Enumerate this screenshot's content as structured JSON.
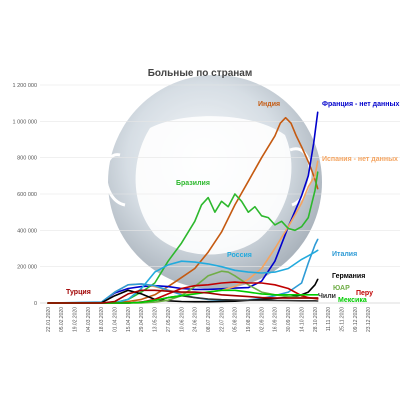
{
  "chart_data": {
    "type": "line",
    "title": "Больные по странам",
    "xlabel": "",
    "ylabel": "",
    "ylim": [
      0,
      1200000
    ],
    "yticks": [
      0,
      200000,
      400000,
      600000,
      800000,
      1000000,
      1200000
    ],
    "ytick_labels": [
      "0",
      "200 000",
      "400 000",
      "600 000",
      "800 000",
      "1 000 000",
      "1 200 000"
    ],
    "xtick_labels": [
      "22.01.2020",
      "05.02.2020",
      "19.02.2020",
      "04.03.2020",
      "18.03.2020",
      "01.04.2020",
      "15.04.2020",
      "29.04.2020",
      "13.05.2020",
      "27.05.2020",
      "10.06.2020",
      "24.06.2020",
      "08.07.2020",
      "22.07.2020",
      "05.08.2020",
      "19.08.2020",
      "02.09.2020",
      "16.09.2020",
      "30.09.2020",
      "14.10.2020",
      "28.10.2020",
      "11.11.2020",
      "25.11.2020",
      "09.12.2020",
      "23.12.2020"
    ],
    "grid": true,
    "series": [
      {
        "name": "Индия",
        "color": "#c55a11",
        "points": [
          [
            0,
            0
          ],
          [
            4,
            0
          ],
          [
            5,
            2000
          ],
          [
            6,
            8000
          ],
          [
            7,
            20000
          ],
          [
            8,
            45000
          ],
          [
            9,
            90000
          ],
          [
            10,
            140000
          ],
          [
            11,
            190000
          ],
          [
            12,
            280000
          ],
          [
            13,
            390000
          ],
          [
            14,
            540000
          ],
          [
            15,
            670000
          ],
          [
            16,
            800000
          ],
          [
            17,
            920000
          ],
          [
            17.4,
            990000
          ],
          [
            17.8,
            1020000
          ],
          [
            18.2,
            990000
          ],
          [
            18.6,
            920000
          ],
          [
            19,
            860000
          ],
          [
            19.6,
            760000
          ],
          [
            20,
            680000
          ],
          [
            20.2,
            630000
          ]
        ]
      },
      {
        "name": "Франция - нет данных",
        "color": "#0000cc",
        "points": [
          [
            0,
            0
          ],
          [
            4,
            2000
          ],
          [
            5,
            55000
          ],
          [
            6,
            80000
          ],
          [
            7,
            90000
          ],
          [
            8,
            95000
          ],
          [
            9,
            90000
          ],
          [
            10,
            80000
          ],
          [
            11,
            75000
          ],
          [
            12,
            75000
          ],
          [
            13,
            78000
          ],
          [
            14,
            82000
          ],
          [
            15,
            85000
          ],
          [
            16,
            120000
          ],
          [
            17,
            230000
          ],
          [
            18,
            420000
          ],
          [
            19,
            590000
          ],
          [
            19.5,
            700000
          ],
          [
            19.9,
            880000
          ],
          [
            20.2,
            1050000
          ]
        ]
      },
      {
        "name": "Испания - нет данных",
        "color": "#f4a460",
        "points": [
          [
            0,
            0
          ],
          [
            4,
            1000
          ],
          [
            5,
            60000
          ],
          [
            6,
            100000
          ],
          [
            7,
            105000
          ],
          [
            8,
            90000
          ],
          [
            9,
            70000
          ],
          [
            10,
            55000
          ],
          [
            11,
            55000
          ],
          [
            12,
            60000
          ],
          [
            13,
            70000
          ],
          [
            14,
            90000
          ],
          [
            15,
            130000
          ],
          [
            16,
            190000
          ],
          [
            17,
            300000
          ],
          [
            18,
            420000
          ],
          [
            19,
            550000
          ],
          [
            19.5,
            640000
          ],
          [
            20,
            700000
          ],
          [
            20.2,
            780000
          ]
        ]
      },
      {
        "name": "Бразилия",
        "color": "#2db82d",
        "points": [
          [
            0,
            0
          ],
          [
            4,
            0
          ],
          [
            5,
            2000
          ],
          [
            6,
            20000
          ],
          [
            7,
            60000
          ],
          [
            8,
            110000
          ],
          [
            9,
            230000
          ],
          [
            10,
            330000
          ],
          [
            11,
            450000
          ],
          [
            11.5,
            540000
          ],
          [
            12,
            580000
          ],
          [
            12.5,
            500000
          ],
          [
            13,
            560000
          ],
          [
            13.5,
            530000
          ],
          [
            14,
            600000
          ],
          [
            14.5,
            560000
          ],
          [
            15,
            500000
          ],
          [
            15.5,
            530000
          ],
          [
            16,
            480000
          ],
          [
            16.5,
            470000
          ],
          [
            17,
            430000
          ],
          [
            17.5,
            450000
          ],
          [
            18,
            410000
          ],
          [
            18.5,
            400000
          ],
          [
            19,
            420000
          ],
          [
            19.5,
            470000
          ],
          [
            20,
            620000
          ],
          [
            20.2,
            720000
          ]
        ]
      },
      {
        "name": "Италия",
        "color": "#2e9bd6",
        "points": [
          [
            0,
            0
          ],
          [
            4,
            5000
          ],
          [
            5,
            60000
          ],
          [
            6,
            100000
          ],
          [
            7,
            105000
          ],
          [
            8,
            95000
          ],
          [
            9,
            70000
          ],
          [
            10,
            45000
          ],
          [
            11,
            30000
          ],
          [
            12,
            20000
          ],
          [
            13,
            15000
          ],
          [
            14,
            14000
          ],
          [
            15,
            17000
          ],
          [
            16,
            25000
          ],
          [
            17,
            40000
          ],
          [
            18,
            60000
          ],
          [
            19,
            110000
          ],
          [
            19.5,
            220000
          ],
          [
            20,
            320000
          ],
          [
            20.2,
            350000
          ]
        ]
      },
      {
        "name": "Россия",
        "color": "#22aadd",
        "points": [
          [
            0,
            0
          ],
          [
            5,
            0
          ],
          [
            6,
            20000
          ],
          [
            7,
            80000
          ],
          [
            8,
            170000
          ],
          [
            9,
            210000
          ],
          [
            10,
            230000
          ],
          [
            11,
            225000
          ],
          [
            12,
            215000
          ],
          [
            13,
            200000
          ],
          [
            14,
            180000
          ],
          [
            15,
            170000
          ],
          [
            16,
            165000
          ],
          [
            17,
            170000
          ],
          [
            18,
            190000
          ],
          [
            19,
            240000
          ],
          [
            19.5,
            260000
          ],
          [
            20,
            280000
          ],
          [
            20.2,
            290000
          ]
        ]
      },
      {
        "name": "Германия",
        "color": "#000000",
        "points": [
          [
            0,
            0
          ],
          [
            4,
            1000
          ],
          [
            5,
            40000
          ],
          [
            6,
            70000
          ],
          [
            7,
            50000
          ],
          [
            8,
            20000
          ],
          [
            9,
            12000
          ],
          [
            10,
            8000
          ],
          [
            11,
            7000
          ],
          [
            12,
            7000
          ],
          [
            13,
            8000
          ],
          [
            14,
            10000
          ],
          [
            15,
            15000
          ],
          [
            16,
            20000
          ],
          [
            17,
            25000
          ],
          [
            18,
            32000
          ],
          [
            19,
            45000
          ],
          [
            19.5,
            60000
          ],
          [
            20,
            100000
          ],
          [
            20.2,
            130000
          ]
        ]
      },
      {
        "name": "ЮАР",
        "color": "#70ad47",
        "points": [
          [
            0,
            0
          ],
          [
            7,
            0
          ],
          [
            8,
            5000
          ],
          [
            9,
            15000
          ],
          [
            10,
            40000
          ],
          [
            11,
            90000
          ],
          [
            12,
            150000
          ],
          [
            13,
            175000
          ],
          [
            13.5,
            170000
          ],
          [
            14,
            150000
          ],
          [
            15,
            100000
          ],
          [
            16,
            60000
          ],
          [
            17,
            45000
          ],
          [
            18,
            35000
          ],
          [
            19,
            30000
          ],
          [
            20,
            25000
          ],
          [
            20.2,
            25000
          ]
        ]
      },
      {
        "name": "Чили",
        "color": "#333333",
        "points": [
          [
            0,
            0
          ],
          [
            6,
            0
          ],
          [
            7,
            5000
          ],
          [
            8,
            15000
          ],
          [
            9,
            30000
          ],
          [
            10,
            40000
          ],
          [
            11,
            30000
          ],
          [
            12,
            22000
          ],
          [
            13,
            18000
          ],
          [
            14,
            16000
          ],
          [
            15,
            15000
          ],
          [
            16,
            15000
          ],
          [
            17,
            14000
          ],
          [
            18,
            13000
          ],
          [
            19,
            12000
          ],
          [
            20,
            12000
          ],
          [
            20.2,
            11000
          ]
        ]
      },
      {
        "name": "Перу",
        "color": "#c00000",
        "points": [
          [
            0,
            0
          ],
          [
            6,
            0
          ],
          [
            7,
            5000
          ],
          [
            8,
            20000
          ],
          [
            9,
            50000
          ],
          [
            10,
            80000
          ],
          [
            11,
            95000
          ],
          [
            12,
            100000
          ],
          [
            13,
            110000
          ],
          [
            14,
            115000
          ],
          [
            15,
            110000
          ],
          [
            16,
            110000
          ],
          [
            17,
            100000
          ],
          [
            18,
            80000
          ],
          [
            19,
            40000
          ],
          [
            19.5,
            30000
          ],
          [
            20,
            25000
          ],
          [
            20.2,
            22000
          ]
        ]
      },
      {
        "name": "Мексика",
        "color": "#00cc00",
        "points": [
          [
            0,
            0
          ],
          [
            6,
            0
          ],
          [
            7,
            4000
          ],
          [
            8,
            15000
          ],
          [
            9,
            30000
          ],
          [
            10,
            40000
          ],
          [
            11,
            50000
          ],
          [
            12,
            60000
          ],
          [
            13,
            70000
          ],
          [
            14,
            70000
          ],
          [
            15,
            60000
          ],
          [
            16,
            50000
          ],
          [
            17,
            45000
          ],
          [
            18,
            45000
          ],
          [
            19,
            45000
          ],
          [
            20,
            45000
          ],
          [
            20.2,
            45000
          ]
        ]
      },
      {
        "name": "Турция",
        "color": "#a00000",
        "points": [
          [
            0,
            0
          ],
          [
            4,
            0
          ],
          [
            5,
            8000
          ],
          [
            6,
            50000
          ],
          [
            7,
            70000
          ],
          [
            8,
            70000
          ],
          [
            9,
            65000
          ],
          [
            10,
            60000
          ],
          [
            11,
            60000
          ],
          [
            12,
            55000
          ],
          [
            13,
            45000
          ],
          [
            14,
            40000
          ],
          [
            15,
            35000
          ],
          [
            16,
            30000
          ],
          [
            17,
            28000
          ],
          [
            18,
            27000
          ],
          [
            19,
            27000
          ],
          [
            20,
            28000
          ],
          [
            20.2,
            28000
          ]
        ]
      }
    ],
    "labels": [
      {
        "series": "Индия",
        "text": "Индия"
      },
      {
        "series": "Франция - нет данных",
        "text": "Франция - нет данных"
      },
      {
        "series": "Испания - нет данных",
        "text": "Испания - нет данных"
      },
      {
        "series": "Бразилия",
        "text": "Бразилия"
      },
      {
        "series": "Италия",
        "text": "Италия"
      },
      {
        "series": "Россия",
        "text": "Россия"
      },
      {
        "series": "Германия",
        "text": "Германия"
      },
      {
        "series": "ЮАР",
        "text": "ЮАР"
      },
      {
        "series": "Чили",
        "text": "Чили"
      },
      {
        "series": "Перу",
        "text": "Перу"
      },
      {
        "series": "Мексика",
        "text": "Мексика"
      },
      {
        "series": "Турция",
        "text": "Турция"
      }
    ]
  }
}
